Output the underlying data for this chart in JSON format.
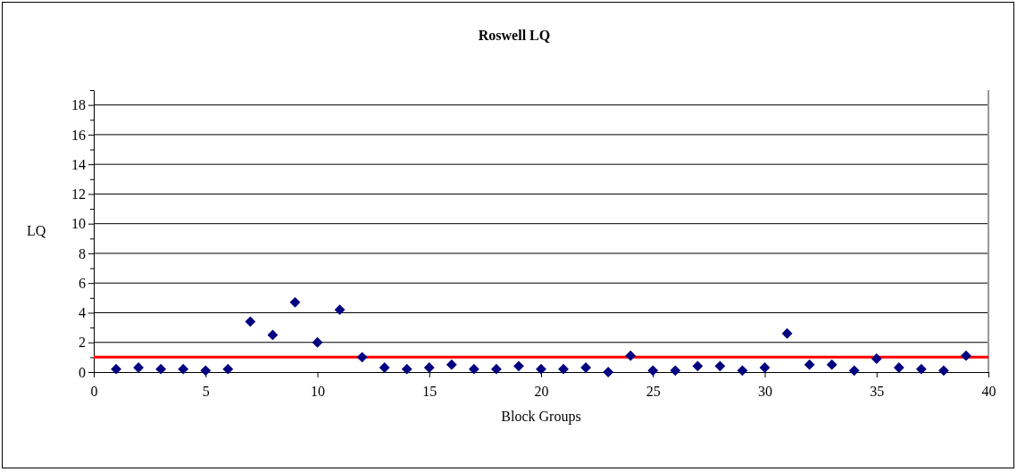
{
  "chart_data": {
    "type": "scatter",
    "title": "Roswell LQ",
    "xlabel": "Block Groups",
    "ylabel": "LQ",
    "x": [
      1,
      2,
      3,
      4,
      5,
      6,
      7,
      8,
      9,
      10,
      11,
      12,
      13,
      14,
      15,
      16,
      17,
      18,
      19,
      20,
      21,
      22,
      23,
      24,
      25,
      26,
      27,
      28,
      29,
      30,
      31,
      32,
      33,
      34,
      35,
      36,
      37,
      38,
      39
    ],
    "series": [
      {
        "color": "#000080",
        "values": [
          0.2,
          0.3,
          0.2,
          0.2,
          0.1,
          0.2,
          3.4,
          2.5,
          4.7,
          2.0,
          4.2,
          1.0,
          0.3,
          0.2,
          0.3,
          0.5,
          0.2,
          0.2,
          0.4,
          0.2,
          0.2,
          0.3,
          0.0,
          1.1,
          0.1,
          0.1,
          0.4,
          0.4,
          0.1,
          0.3,
          2.6,
          0.5,
          0.5,
          0.1,
          0.9,
          0.3,
          0.2,
          0.1,
          1.1
        ]
      }
    ],
    "marker": "diamond",
    "grid": "y",
    "xlim": [
      0,
      40
    ],
    "xticks": [
      0,
      5,
      10,
      15,
      20,
      25,
      30,
      35,
      40
    ],
    "ylim": [
      0,
      19
    ],
    "yticks": [
      0,
      {
        "value": 1,
        "label": null
      },
      2,
      {
        "value": 3,
        "label": null
      },
      4,
      {
        "value": 5,
        "label": null
      },
      6,
      {
        "value": 7,
        "label": null
      },
      8,
      {
        "value": 9,
        "label": null
      },
      10,
      {
        "value": 11,
        "label": null
      },
      12,
      {
        "value": 13,
        "label": null
      },
      14,
      {
        "value": 15,
        "label": null
      },
      16,
      {
        "value": 17,
        "label": null
      },
      18,
      {
        "value": 19,
        "label": null
      }
    ],
    "ref_lines": [
      {
        "axis": "y",
        "value": 1,
        "color": "#ff0000"
      }
    ]
  }
}
